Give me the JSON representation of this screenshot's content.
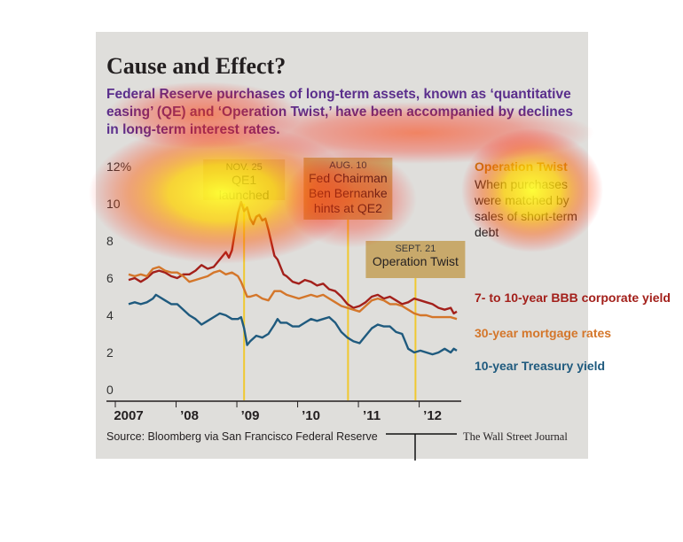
{
  "header": {
    "title": "Cause and Effect?",
    "subtitle": "Federal Reserve purchases of long-term assets, known as ‘quantitative easing’ (QE) and ‘Operation Twist,’ have been accompanied by declines in long-term interest rates."
  },
  "footer": {
    "source": "Source: Bloomberg via San Francisco Federal Reserve",
    "credit": "The Wall Street Journal"
  },
  "side_note": {
    "heading": "Operation Twist",
    "body": "When purchases were matched by sales of short-term debt"
  },
  "annotations": [
    {
      "date": "NOV. 25",
      "lines": [
        "QE1",
        "launched"
      ],
      "x": 2008.9
    },
    {
      "date": "AUG. 10",
      "lines": [
        "Fed Chairman",
        "Ben Bernanke",
        "hints at QE2"
      ],
      "x": 2010.61
    },
    {
      "date": "SEPT. 21",
      "lines": [
        "Operation Twist"
      ],
      "x": 2011.72
    }
  ],
  "colors": {
    "bbb": "#a3201b",
    "mortgage": "#d4762a",
    "treasury": "#1f5a7e",
    "annotation_box": "#c8a96b",
    "event_line": "#f0c830",
    "side_heading": "#c07a10"
  },
  "chart_data": {
    "type": "line",
    "title": "Cause and Effect?",
    "xlabel": "",
    "ylabel": "",
    "y_unit": "%",
    "ylim": [
      0,
      12
    ],
    "xlim": [
      2007.0,
      2012.4
    ],
    "y_ticks": [
      "12%",
      "10",
      "8",
      "6",
      "4",
      "2",
      "0"
    ],
    "x_ticks": [
      {
        "label": "2007",
        "x": 2007.0
      },
      {
        "label": "’08",
        "x": 2008.0
      },
      {
        "label": "’09",
        "x": 2009.0
      },
      {
        "label": "’10",
        "x": 2010.0
      },
      {
        "label": "’11",
        "x": 2011.0
      },
      {
        "label": "’12",
        "x": 2012.0
      }
    ],
    "grid": false,
    "legend": "right",
    "series": [
      {
        "name": "7- to 10-year BBB corporate yield",
        "color": "#a3201b",
        "points": [
          [
            2007.0,
            5.9
          ],
          [
            2007.1,
            6.0
          ],
          [
            2007.2,
            5.8
          ],
          [
            2007.3,
            6.0
          ],
          [
            2007.4,
            6.3
          ],
          [
            2007.5,
            6.4
          ],
          [
            2007.6,
            6.3
          ],
          [
            2007.7,
            6.1
          ],
          [
            2007.8,
            6.0
          ],
          [
            2007.9,
            6.2
          ],
          [
            2008.0,
            6.2
          ],
          [
            2008.1,
            6.4
          ],
          [
            2008.2,
            6.7
          ],
          [
            2008.3,
            6.5
          ],
          [
            2008.4,
            6.6
          ],
          [
            2008.5,
            7.0
          ],
          [
            2008.6,
            7.4
          ],
          [
            2008.65,
            7.1
          ],
          [
            2008.7,
            7.5
          ],
          [
            2008.75,
            8.5
          ],
          [
            2008.8,
            9.5
          ],
          [
            2008.85,
            10.1
          ],
          [
            2008.9,
            9.6
          ],
          [
            2008.95,
            9.8
          ],
          [
            2009.0,
            9.2
          ],
          [
            2009.05,
            8.9
          ],
          [
            2009.1,
            9.3
          ],
          [
            2009.15,
            9.4
          ],
          [
            2009.2,
            9.1
          ],
          [
            2009.25,
            9.2
          ],
          [
            2009.3,
            8.6
          ],
          [
            2009.35,
            7.9
          ],
          [
            2009.4,
            7.2
          ],
          [
            2009.45,
            7.0
          ],
          [
            2009.5,
            6.6
          ],
          [
            2009.55,
            6.2
          ],
          [
            2009.6,
            6.1
          ],
          [
            2009.7,
            5.8
          ],
          [
            2009.8,
            5.7
          ],
          [
            2009.9,
            5.9
          ],
          [
            2010.0,
            5.8
          ],
          [
            2010.1,
            5.6
          ],
          [
            2010.2,
            5.7
          ],
          [
            2010.3,
            5.4
          ],
          [
            2010.4,
            5.3
          ],
          [
            2010.5,
            5.0
          ],
          [
            2010.6,
            4.6
          ],
          [
            2010.7,
            4.4
          ],
          [
            2010.8,
            4.5
          ],
          [
            2010.9,
            4.7
          ],
          [
            2011.0,
            5.0
          ],
          [
            2011.1,
            5.1
          ],
          [
            2011.2,
            4.9
          ],
          [
            2011.3,
            5.0
          ],
          [
            2011.4,
            4.8
          ],
          [
            2011.5,
            4.6
          ],
          [
            2011.6,
            4.7
          ],
          [
            2011.7,
            4.9
          ],
          [
            2011.8,
            4.8
          ],
          [
            2011.9,
            4.7
          ],
          [
            2012.0,
            4.6
          ],
          [
            2012.1,
            4.4
          ],
          [
            2012.2,
            4.3
          ],
          [
            2012.3,
            4.4
          ],
          [
            2012.35,
            4.1
          ],
          [
            2012.4,
            4.2
          ]
        ]
      },
      {
        "name": "30-year mortgage rates",
        "color": "#d4762a",
        "points": [
          [
            2007.0,
            6.2
          ],
          [
            2007.1,
            6.1
          ],
          [
            2007.2,
            6.2
          ],
          [
            2007.3,
            6.1
          ],
          [
            2007.4,
            6.5
          ],
          [
            2007.5,
            6.6
          ],
          [
            2007.6,
            6.4
          ],
          [
            2007.7,
            6.3
          ],
          [
            2007.8,
            6.3
          ],
          [
            2007.9,
            6.1
          ],
          [
            2008.0,
            5.8
          ],
          [
            2008.1,
            5.9
          ],
          [
            2008.2,
            6.0
          ],
          [
            2008.3,
            6.1
          ],
          [
            2008.4,
            6.3
          ],
          [
            2008.5,
            6.4
          ],
          [
            2008.6,
            6.2
          ],
          [
            2008.7,
            6.3
          ],
          [
            2008.8,
            6.1
          ],
          [
            2008.85,
            5.8
          ],
          [
            2008.9,
            5.4
          ],
          [
            2008.95,
            5.0
          ],
          [
            2009.0,
            5.0
          ],
          [
            2009.1,
            5.1
          ],
          [
            2009.2,
            4.9
          ],
          [
            2009.3,
            4.8
          ],
          [
            2009.4,
            5.3
          ],
          [
            2009.5,
            5.3
          ],
          [
            2009.6,
            5.1
          ],
          [
            2009.7,
            5.0
          ],
          [
            2009.8,
            4.9
          ],
          [
            2009.9,
            5.0
          ],
          [
            2010.0,
            5.1
          ],
          [
            2010.1,
            5.0
          ],
          [
            2010.2,
            5.1
          ],
          [
            2010.3,
            4.9
          ],
          [
            2010.4,
            4.7
          ],
          [
            2010.5,
            4.5
          ],
          [
            2010.6,
            4.4
          ],
          [
            2010.7,
            4.3
          ],
          [
            2010.8,
            4.2
          ],
          [
            2010.9,
            4.5
          ],
          [
            2011.0,
            4.8
          ],
          [
            2011.1,
            4.9
          ],
          [
            2011.2,
            4.8
          ],
          [
            2011.3,
            4.6
          ],
          [
            2011.4,
            4.6
          ],
          [
            2011.5,
            4.5
          ],
          [
            2011.6,
            4.3
          ],
          [
            2011.7,
            4.1
          ],
          [
            2011.8,
            4.0
          ],
          [
            2011.9,
            4.0
          ],
          [
            2012.0,
            3.9
          ],
          [
            2012.1,
            3.9
          ],
          [
            2012.2,
            3.9
          ],
          [
            2012.3,
            3.9
          ],
          [
            2012.4,
            3.8
          ]
        ]
      },
      {
        "name": "10-year Treasury yield",
        "color": "#1f5a7e",
        "points": [
          [
            2007.0,
            4.6
          ],
          [
            2007.1,
            4.7
          ],
          [
            2007.2,
            4.6
          ],
          [
            2007.3,
            4.7
          ],
          [
            2007.4,
            4.9
          ],
          [
            2007.45,
            5.1
          ],
          [
            2007.5,
            5.0
          ],
          [
            2007.6,
            4.8
          ],
          [
            2007.7,
            4.6
          ],
          [
            2007.8,
            4.6
          ],
          [
            2007.9,
            4.3
          ],
          [
            2008.0,
            4.0
          ],
          [
            2008.1,
            3.8
          ],
          [
            2008.2,
            3.5
          ],
          [
            2008.3,
            3.7
          ],
          [
            2008.4,
            3.9
          ],
          [
            2008.5,
            4.1
          ],
          [
            2008.6,
            4.0
          ],
          [
            2008.7,
            3.8
          ],
          [
            2008.8,
            3.8
          ],
          [
            2008.85,
            3.9
          ],
          [
            2008.9,
            3.3
          ],
          [
            2008.95,
            2.4
          ],
          [
            2009.0,
            2.6
          ],
          [
            2009.1,
            2.9
          ],
          [
            2009.2,
            2.8
          ],
          [
            2009.3,
            3.0
          ],
          [
            2009.4,
            3.5
          ],
          [
            2009.45,
            3.8
          ],
          [
            2009.5,
            3.6
          ],
          [
            2009.6,
            3.6
          ],
          [
            2009.7,
            3.4
          ],
          [
            2009.8,
            3.4
          ],
          [
            2009.9,
            3.6
          ],
          [
            2010.0,
            3.8
          ],
          [
            2010.1,
            3.7
          ],
          [
            2010.2,
            3.8
          ],
          [
            2010.3,
            3.9
          ],
          [
            2010.4,
            3.6
          ],
          [
            2010.5,
            3.1
          ],
          [
            2010.6,
            2.8
          ],
          [
            2010.7,
            2.6
          ],
          [
            2010.8,
            2.5
          ],
          [
            2010.9,
            2.9
          ],
          [
            2011.0,
            3.3
          ],
          [
            2011.1,
            3.5
          ],
          [
            2011.2,
            3.4
          ],
          [
            2011.3,
            3.4
          ],
          [
            2011.4,
            3.1
          ],
          [
            2011.5,
            3.0
          ],
          [
            2011.55,
            2.6
          ],
          [
            2011.6,
            2.2
          ],
          [
            2011.7,
            2.0
          ],
          [
            2011.8,
            2.1
          ],
          [
            2011.9,
            2.0
          ],
          [
            2012.0,
            1.9
          ],
          [
            2012.1,
            2.0
          ],
          [
            2012.2,
            2.2
          ],
          [
            2012.3,
            2.0
          ],
          [
            2012.35,
            2.2
          ],
          [
            2012.4,
            2.1
          ]
        ]
      }
    ]
  }
}
